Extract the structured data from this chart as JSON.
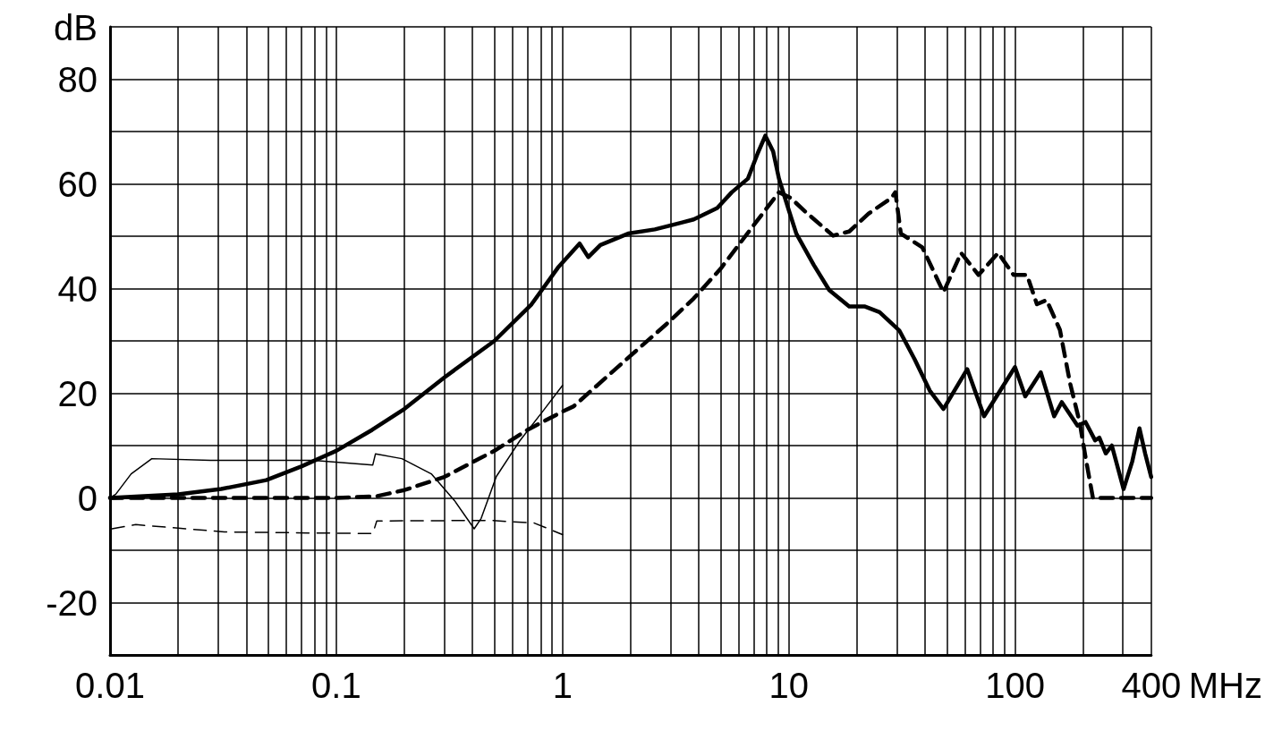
{
  "chart_data": {
    "type": "line",
    "xlabel": "MHz",
    "ylabel": "dB",
    "log": "x",
    "grid": true,
    "marker": "none",
    "xlim": [
      0.01,
      400
    ],
    "ylim": [
      -30,
      90
    ],
    "xticks": [
      0.01,
      {
        "value": 0.02,
        "label": null
      },
      {
        "value": 0.03,
        "label": null
      },
      {
        "value": 0.04,
        "label": null
      },
      {
        "value": 0.05,
        "label": null
      },
      {
        "value": 0.06,
        "label": null
      },
      {
        "value": 0.07,
        "label": null
      },
      {
        "value": 0.08,
        "label": null
      },
      {
        "value": 0.09,
        "label": null
      },
      0.1,
      {
        "value": 0.2,
        "label": null
      },
      {
        "value": 0.3,
        "label": null
      },
      {
        "value": 0.4,
        "label": null
      },
      {
        "value": 0.5,
        "label": null
      },
      {
        "value": 0.6,
        "label": null
      },
      {
        "value": 0.7,
        "label": null
      },
      {
        "value": 0.8,
        "label": null
      },
      {
        "value": 0.9,
        "label": null
      },
      1,
      {
        "value": 2,
        "label": null
      },
      {
        "value": 3,
        "label": null
      },
      {
        "value": 4,
        "label": null
      },
      {
        "value": 5,
        "label": null
      },
      {
        "value": 6,
        "label": null
      },
      {
        "value": 7,
        "label": null
      },
      {
        "value": 8,
        "label": null
      },
      {
        "value": 9,
        "label": null
      },
      10,
      {
        "value": 20,
        "label": null
      },
      {
        "value": 30,
        "label": null
      },
      {
        "value": 40,
        "label": null
      },
      {
        "value": 50,
        "label": null
      },
      {
        "value": 60,
        "label": null
      },
      {
        "value": 70,
        "label": null
      },
      {
        "value": 80,
        "label": null
      },
      {
        "value": 90,
        "label": null
      },
      100,
      {
        "value": 200,
        "label": null
      },
      {
        "value": 300,
        "label": null
      },
      400
    ],
    "yticks": [
      {
        "value": -30,
        "label": null
      },
      -20,
      {
        "value": -10,
        "label": null
      },
      0,
      {
        "value": 10,
        "label": null
      },
      20,
      {
        "value": 30,
        "label": null
      },
      40,
      {
        "value": 50,
        "label": null
      },
      60,
      {
        "value": 70,
        "label": null
      },
      80,
      {
        "value": 90,
        "label": null
      }
    ],
    "series": [
      {
        "color": "#000000",
        "line_style": "solid",
        "x": [
          0.01,
          0.02,
          0.031,
          0.049,
          0.07,
          0.1,
          0.144,
          0.2,
          0.3,
          0.5,
          0.73,
          0.955,
          1.19,
          1.3,
          1.47,
          1.95,
          2.56,
          3.8,
          4.83,
          5.6,
          6.6,
          7.3,
          7.88,
          8.53,
          9.05,
          10,
          10.8,
          12.9,
          15.1,
          18.5,
          21.6,
          25.2,
          30.8,
          36,
          42,
          48.3,
          61.5,
          73,
          100,
          111,
          130,
          149,
          161,
          189,
          205,
          226,
          236,
          252,
          268,
          302,
          330,
          355,
          376,
          400
        ],
        "values": [
          0,
          0.7,
          1.7,
          3.4,
          6,
          9,
          13,
          17,
          23,
          30,
          37,
          44,
          48.6,
          46,
          48.3,
          50.5,
          51.3,
          53.2,
          55.4,
          58.4,
          61,
          65.9,
          69.2,
          66.2,
          61,
          55,
          50.5,
          44.5,
          39.7,
          36.6,
          36.6,
          35.5,
          32,
          26.5,
          20.5,
          17,
          24.6,
          15.6,
          25,
          19.4,
          24,
          15.6,
          18.3,
          13.8,
          14.5,
          11,
          11.5,
          8.5,
          10,
          1.7,
          7,
          13.3,
          8.5,
          4
        ]
      },
      {
        "color": "#000000",
        "line_style": "dashed",
        "x": [
          0.01,
          0.05,
          0.1,
          0.15,
          0.2,
          0.3,
          0.5,
          0.7,
          1,
          1.12,
          2.1,
          2.88,
          3.8,
          5,
          6.35,
          9.05,
          10.2,
          11.9,
          15.7,
          18.5,
          22.5,
          28.4,
          29.6,
          31.3,
          38.9,
          48.3,
          57.8,
          69,
          84.3,
          98.6,
          113,
          125,
          138,
          158,
          175,
          193,
          205,
          221,
          400
        ],
        "values": [
          0,
          0,
          0,
          0.3,
          1.5,
          4,
          9,
          13,
          16.5,
          17.5,
          28,
          33.2,
          38.1,
          43.8,
          49.7,
          58.4,
          57.3,
          54.6,
          50.1,
          50.9,
          54.3,
          57.3,
          58.4,
          50.5,
          47.9,
          39.3,
          46.8,
          42.6,
          46.8,
          42.6,
          42.6,
          37,
          37.8,
          32.1,
          22,
          14.5,
          7.8,
          0,
          0
        ]
      },
      {
        "color": "#000000",
        "line_style": "solid",
        "x": [
          0.01,
          0.0106,
          0.0124,
          0.0153,
          0.0278,
          0.079,
          0.145,
          0.149,
          0.195,
          0.263,
          0.333,
          0.407,
          0.437,
          0.51,
          0.647,
          0.82,
          1
        ],
        "values": [
          0,
          0.7,
          4.6,
          7.5,
          7.2,
          7.2,
          6.3,
          8.4,
          7.5,
          4.6,
          -0.5,
          -5.9,
          -3.9,
          4.1,
          10.9,
          16.6,
          21.5
        ]
      },
      {
        "color": "#000000",
        "line_style": "dashed",
        "x": [
          0.0102,
          0.013,
          0.0178,
          0.032,
          0.079,
          0.145,
          0.151,
          0.48,
          0.75,
          1
        ],
        "values": [
          -5.9,
          -5.1,
          -5.6,
          -6.5,
          -6.7,
          -6.8,
          -4.4,
          -4.3,
          -4.8,
          -7
        ]
      }
    ]
  }
}
